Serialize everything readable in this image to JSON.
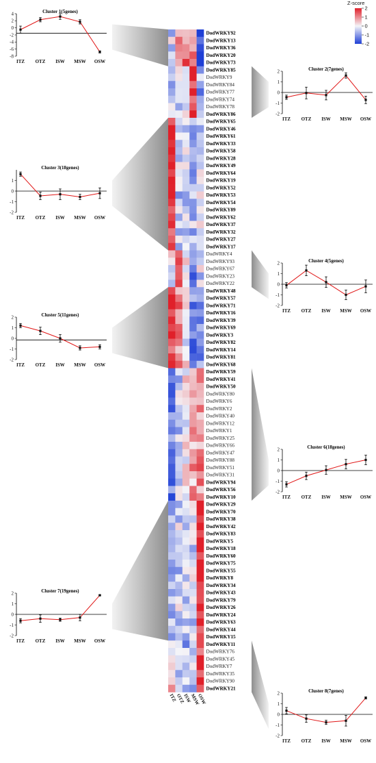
{
  "chart_data": {
    "type": "heatmap",
    "heatmap": {
      "columns": [
        "ITZ",
        "OTZ",
        "ISW",
        "MSW",
        "OSW"
      ],
      "legend": {
        "title": "Z-score",
        "ticks": [
          "2",
          "1",
          "0",
          "-1",
          "-2"
        ],
        "colors": {
          "high": "#e0202a",
          "mid": "#f4f4f8",
          "low": "#1f3fd6"
        }
      },
      "genes": [
        {
          "name": "DodWRKY92",
          "bold": true
        },
        {
          "name": "DodWRKY13",
          "bold": true
        },
        {
          "name": "DodWRKY36",
          "bold": true
        },
        {
          "name": "DodWRKY20",
          "bold": true
        },
        {
          "name": "DodWRKY73",
          "bold": true
        },
        {
          "name": "DodWRKY85",
          "bold": true
        },
        {
          "name": "DodWRKY9",
          "bold": false
        },
        {
          "name": "DodWRKY84",
          "bold": false
        },
        {
          "name": "DodWRKY77",
          "bold": false
        },
        {
          "name": "DodWRKY74",
          "bold": false
        },
        {
          "name": "DodWRKY78",
          "bold": false
        },
        {
          "name": "DodWRKY86",
          "bold": true
        },
        {
          "name": "DodWRKY65",
          "bold": true
        },
        {
          "name": "DodWRKY46",
          "bold": true
        },
        {
          "name": "DodWRKY61",
          "bold": true
        },
        {
          "name": "DodWRKY33",
          "bold": true
        },
        {
          "name": "DodWRKY58",
          "bold": true
        },
        {
          "name": "DodWRKY28",
          "bold": true
        },
        {
          "name": "DodWRKY49",
          "bold": true
        },
        {
          "name": "DodWRKY64",
          "bold": true
        },
        {
          "name": "DodWRKY19",
          "bold": true
        },
        {
          "name": "DodWRKY52",
          "bold": true
        },
        {
          "name": "DodWRKY53",
          "bold": true
        },
        {
          "name": "DodWRKY54",
          "bold": true
        },
        {
          "name": "DodWRKY89",
          "bold": true
        },
        {
          "name": "DodWRKY62",
          "bold": true
        },
        {
          "name": "DodWRKY37",
          "bold": true
        },
        {
          "name": "DodWRKY32",
          "bold": true
        },
        {
          "name": "DodWRKY27",
          "bold": true
        },
        {
          "name": "DodWRKY17",
          "bold": true
        },
        {
          "name": "DodWRKY4",
          "bold": false
        },
        {
          "name": "DodWRKY93",
          "bold": false
        },
        {
          "name": "DodWRKY67",
          "bold": false
        },
        {
          "name": "DodWRKY23",
          "bold": false
        },
        {
          "name": "DodWRKY22",
          "bold": false
        },
        {
          "name": "DodWRKY48",
          "bold": true
        },
        {
          "name": "DodWRKY57",
          "bold": true
        },
        {
          "name": "DodWRKY71",
          "bold": true
        },
        {
          "name": "DodWRKY16",
          "bold": true
        },
        {
          "name": "DodWRKY39",
          "bold": true
        },
        {
          "name": "DodWRKY69",
          "bold": true
        },
        {
          "name": "DodWRKY3",
          "bold": true
        },
        {
          "name": "DodWRKY82",
          "bold": true
        },
        {
          "name": "DodWRKY14",
          "bold": true
        },
        {
          "name": "DodWRKY81",
          "bold": true
        },
        {
          "name": "DodWRKY68",
          "bold": true
        },
        {
          "name": "DodWRKY59",
          "bold": true
        },
        {
          "name": "DodWRKY41",
          "bold": true
        },
        {
          "name": "DodWRKY50",
          "bold": true
        },
        {
          "name": "DodWRKY80",
          "bold": false
        },
        {
          "name": "DodWRKY6",
          "bold": false
        },
        {
          "name": "DodWRKY2",
          "bold": false
        },
        {
          "name": "DodWRKY40",
          "bold": false
        },
        {
          "name": "DodWRKY12",
          "bold": false
        },
        {
          "name": "DodWRKY1",
          "bold": false
        },
        {
          "name": "DodWRKY25",
          "bold": false
        },
        {
          "name": "DodWRKY66",
          "bold": false
        },
        {
          "name": "DodWRKY47",
          "bold": false
        },
        {
          "name": "DodWRKY88",
          "bold": false
        },
        {
          "name": "DodWRKY51",
          "bold": false
        },
        {
          "name": "DodWRKY31",
          "bold": false
        },
        {
          "name": "DodWRKY94",
          "bold": true
        },
        {
          "name": "DodWRKY56",
          "bold": true
        },
        {
          "name": "DodWRKY10",
          "bold": true
        },
        {
          "name": "DodWRKY29",
          "bold": true
        },
        {
          "name": "DodWRKY70",
          "bold": true
        },
        {
          "name": "DodWRKY38",
          "bold": true
        },
        {
          "name": "DodWRKY42",
          "bold": true
        },
        {
          "name": "DodWRKY83",
          "bold": true
        },
        {
          "name": "DodWRKY5",
          "bold": true
        },
        {
          "name": "DodWRKY18",
          "bold": true
        },
        {
          "name": "DodWRKY60",
          "bold": true
        },
        {
          "name": "DodWRKY75",
          "bold": true
        },
        {
          "name": "DodWRKY55",
          "bold": true
        },
        {
          "name": "DodWRKY8",
          "bold": true
        },
        {
          "name": "DodWRKY34",
          "bold": true
        },
        {
          "name": "DodWRKY43",
          "bold": true
        },
        {
          "name": "DodWRKY79",
          "bold": true
        },
        {
          "name": "DodWRKY26",
          "bold": true
        },
        {
          "name": "DodWRKY24",
          "bold": true
        },
        {
          "name": "DodWRKY63",
          "bold": true
        },
        {
          "name": "DodWRKY44",
          "bold": true
        },
        {
          "name": "DodWRKY15",
          "bold": true
        },
        {
          "name": "DodWRKY11",
          "bold": true
        },
        {
          "name": "DodWRKY76",
          "bold": false
        },
        {
          "name": "DodWRKY45",
          "bold": false
        },
        {
          "name": "DodWRKY7",
          "bold": false
        },
        {
          "name": "DodWRKY35",
          "bold": false
        },
        {
          "name": "DodWRKY90",
          "bold": false
        },
        {
          "name": "DodWRKY21",
          "bold": true
        }
      ],
      "cluster_sizes": [
        5,
        7,
        18,
        5,
        11,
        18,
        19,
        7
      ],
      "cluster_patterns": [
        [
          -0.3,
          1.0,
          1.2,
          0.9,
          -1.9
        ],
        [
          -0.6,
          -0.2,
          -0.3,
          1.8,
          -0.8
        ],
        [
          1.9,
          -0.5,
          -0.4,
          -0.6,
          -0.3
        ],
        [
          -0.2,
          1.6,
          0.4,
          -1.3,
          -0.3
        ],
        [
          1.5,
          1.0,
          0.0,
          -1.2,
          -1.1
        ],
        [
          -1.2,
          -0.5,
          0.0,
          0.7,
          1.0
        ],
        [
          -0.5,
          -0.4,
          -0.5,
          -0.3,
          2.0
        ],
        [
          0.4,
          -0.4,
          -0.7,
          -0.5,
          1.6
        ]
      ]
    },
    "clusters": [
      {
        "title": "Cluster 1(5genes)",
        "categories": [
          "ITZ",
          "OTZ",
          "ISW",
          "MSW",
          "OSW"
        ],
        "values": [
          -0.5,
          2.3,
          3.2,
          1.7,
          -6.8
        ],
        "errors": [
          1.0,
          0.6,
          0.8,
          0.6,
          0.3
        ],
        "ylim": [
          -8,
          4
        ],
        "yticks": [
          -8,
          -6,
          -4,
          -2,
          0,
          2,
          4
        ],
        "refline": -1.5
      },
      {
        "title": "Cluster 2(7genes)",
        "categories": [
          "ITZ",
          "OTZ",
          "ISW",
          "MSW",
          "OSW"
        ],
        "values": [
          -0.45,
          -0.05,
          -0.25,
          1.6,
          -0.7
        ],
        "errors": [
          0.2,
          0.55,
          0.45,
          0.25,
          0.35
        ],
        "ylim": [
          -2,
          2
        ],
        "yticks": [
          -2,
          -1,
          0,
          1,
          2
        ],
        "refline": 0
      },
      {
        "title": "Cluster 3(18genes)",
        "categories": [
          "ITZ",
          "OTZ",
          "ISW",
          "MSW",
          "OSW"
        ],
        "values": [
          1.6,
          -0.45,
          -0.3,
          -0.55,
          -0.2
        ],
        "errors": [
          0.2,
          0.35,
          0.5,
          0.25,
          0.5
        ],
        "ylim": [
          -2,
          2
        ],
        "yticks": [
          -2,
          -1,
          0,
          1
        ],
        "refline": 0
      },
      {
        "title": "Cluster 4(5genes)",
        "categories": [
          "ITZ",
          "OTZ",
          "ISW",
          "MSW",
          "OSW"
        ],
        "values": [
          -0.1,
          1.3,
          0.2,
          -1.0,
          -0.2
        ],
        "errors": [
          0.25,
          0.5,
          0.5,
          0.45,
          0.6
        ],
        "ylim": [
          -2,
          2
        ],
        "yticks": [
          -2,
          -1,
          0,
          1,
          2
        ],
        "refline": 0
      },
      {
        "title": "Cluster 5(11genes)",
        "categories": [
          "ITZ",
          "OTZ",
          "ISW",
          "MSW",
          "OSW"
        ],
        "values": [
          1.2,
          0.7,
          0.0,
          -0.9,
          -0.8
        ],
        "errors": [
          0.2,
          0.35,
          0.35,
          0.2,
          0.2
        ],
        "ylim": [
          -2,
          2
        ],
        "yticks": [
          -2,
          -1,
          0,
          1,
          2
        ],
        "refline": -0.15
      },
      {
        "title": "Cluster 6(18genes)",
        "categories": [
          "ITZ",
          "OTZ",
          "ISW",
          "MSW",
          "OSW"
        ],
        "values": [
          -1.3,
          -0.5,
          0.05,
          0.6,
          1.0
        ],
        "errors": [
          0.25,
          0.35,
          0.4,
          0.45,
          0.45
        ],
        "ylim": [
          -2,
          2
        ],
        "yticks": [
          -2,
          -1,
          0,
          1,
          2
        ],
        "refline": 0
      },
      {
        "title": "Cluster 7(19genes)",
        "categories": [
          "ITZ",
          "OTZ",
          "ISW",
          "MSW",
          "OSW"
        ],
        "values": [
          -0.6,
          -0.4,
          -0.5,
          -0.3,
          1.8
        ],
        "errors": [
          0.2,
          0.35,
          0.15,
          0.3,
          0.05
        ],
        "ylim": [
          -2,
          2
        ],
        "yticks": [
          -2,
          -1,
          0,
          1,
          2
        ],
        "refline": 0
      },
      {
        "title": "Cluster 8(7genes)",
        "categories": [
          "ITZ",
          "OTZ",
          "ISW",
          "MSW",
          "OSW"
        ],
        "values": [
          0.35,
          -0.4,
          -0.75,
          -0.6,
          1.55
        ],
        "errors": [
          0.3,
          0.35,
          0.2,
          0.5,
          0.1
        ],
        "ylim": [
          -2,
          2
        ],
        "yticks": [
          -2,
          -1,
          0,
          1,
          2
        ],
        "refline": 0
      }
    ]
  }
}
